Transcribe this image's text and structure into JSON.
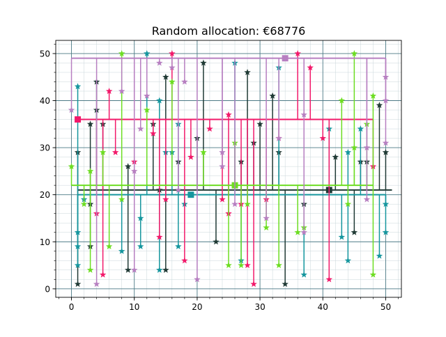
{
  "chart_data": {
    "type": "scatter",
    "title": "Random allocation: €68776",
    "xlabel": "",
    "ylabel": "",
    "xlim": [
      -2.5,
      52.5
    ],
    "ylim": [
      -1.8,
      52.8
    ],
    "xticks": [
      0,
      10,
      20,
      30,
      40,
      50
    ],
    "yticks": [
      0,
      10,
      20,
      30,
      40,
      50
    ],
    "minor_step": 2,
    "grid": "major and minor",
    "legend": "none",
    "series": [
      {
        "color": "#203a35",
        "facility": [
          41,
          21
        ],
        "bus_y": 21,
        "bus_x": [
          1,
          51
        ],
        "points": [
          [
            1,
            1
          ],
          [
            1,
            29
          ],
          [
            3,
            9
          ],
          [
            3,
            18
          ],
          [
            3,
            35
          ],
          [
            4,
            38
          ],
          [
            4,
            44
          ],
          [
            5,
            35
          ],
          [
            9,
            4
          ],
          [
            9,
            26
          ],
          [
            13,
            35
          ],
          [
            14,
            21
          ],
          [
            15,
            4
          ],
          [
            15,
            45
          ],
          [
            17,
            27
          ],
          [
            20,
            32
          ],
          [
            21,
            48
          ],
          [
            23,
            10
          ],
          [
            27,
            27
          ],
          [
            28,
            46
          ],
          [
            29,
            31
          ],
          [
            30,
            35
          ],
          [
            32,
            41
          ],
          [
            33,
            29
          ],
          [
            34,
            1
          ],
          [
            37,
            18
          ],
          [
            42,
            28
          ],
          [
            45,
            12
          ],
          [
            46,
            27
          ],
          [
            47,
            27
          ],
          [
            49,
            39
          ],
          [
            50,
            29
          ]
        ]
      },
      {
        "color": "#15969e",
        "facility": [
          19,
          20
        ],
        "bus_y": 20,
        "bus_x": [
          1,
          50
        ],
        "points": [
          [
            1,
            5
          ],
          [
            1,
            9
          ],
          [
            1,
            12
          ],
          [
            1,
            43
          ],
          [
            2,
            19
          ],
          [
            8,
            8
          ],
          [
            11,
            9
          ],
          [
            11,
            15
          ],
          [
            12,
            50
          ],
          [
            14,
            4
          ],
          [
            14,
            40
          ],
          [
            15,
            29
          ],
          [
            16,
            29
          ],
          [
            17,
            9
          ],
          [
            17,
            35
          ],
          [
            18,
            18
          ],
          [
            26,
            48
          ],
          [
            27,
            6
          ],
          [
            33,
            47
          ],
          [
            37,
            3
          ],
          [
            41,
            34
          ],
          [
            43,
            11
          ],
          [
            44,
            6
          ],
          [
            44,
            29
          ],
          [
            46,
            34
          ],
          [
            49,
            7
          ],
          [
            50,
            12
          ],
          [
            50,
            18
          ]
        ]
      },
      {
        "color": "#f2196a",
        "facility": [
          1,
          36
        ],
        "bus_y": 36,
        "bus_x": [
          1,
          48
        ],
        "points": [
          [
            4,
            16
          ],
          [
            5,
            3
          ],
          [
            6,
            42
          ],
          [
            7,
            29
          ],
          [
            10,
            27
          ],
          [
            13,
            33
          ],
          [
            14,
            11
          ],
          [
            15,
            19
          ],
          [
            16,
            50
          ],
          [
            18,
            6
          ],
          [
            19,
            28
          ],
          [
            22,
            34
          ],
          [
            24,
            19
          ],
          [
            25,
            37
          ],
          [
            25,
            16
          ],
          [
            27,
            18
          ],
          [
            28,
            5
          ],
          [
            29,
            1
          ],
          [
            31,
            19
          ],
          [
            33,
            32
          ],
          [
            36,
            50
          ],
          [
            38,
            47
          ],
          [
            40,
            32
          ],
          [
            41,
            2
          ],
          [
            48,
            26
          ]
        ]
      },
      {
        "color": "#6ddd22",
        "facility": [
          26,
          22
        ],
        "bus_y": 22,
        "bus_x": [
          0,
          48
        ],
        "points": [
          [
            0,
            26
          ],
          [
            2,
            18
          ],
          [
            3,
            4
          ],
          [
            3,
            25
          ],
          [
            5,
            29
          ],
          [
            6,
            9
          ],
          [
            8,
            19
          ],
          [
            8,
            50
          ],
          [
            12,
            38
          ],
          [
            16,
            44
          ],
          [
            21,
            29
          ],
          [
            25,
            5
          ],
          [
            26,
            31
          ],
          [
            27,
            5
          ],
          [
            28,
            18
          ],
          [
            31,
            13
          ],
          [
            33,
            5
          ],
          [
            36,
            12
          ],
          [
            37,
            13
          ],
          [
            43,
            40
          ],
          [
            44,
            18
          ],
          [
            45,
            30
          ],
          [
            45,
            50
          ],
          [
            47,
            35
          ],
          [
            48,
            3
          ],
          [
            48,
            41
          ]
        ]
      },
      {
        "color": "#b77fc1",
        "facility": [
          34,
          49
        ],
        "bus_y": 49,
        "bus_x": [
          0,
          50
        ],
        "points": [
          [
            0,
            38
          ],
          [
            4,
            1
          ],
          [
            8,
            42
          ],
          [
            10,
            4
          ],
          [
            10,
            25
          ],
          [
            11,
            34
          ],
          [
            12,
            41
          ],
          [
            14,
            48
          ],
          [
            16,
            47
          ],
          [
            17,
            21
          ],
          [
            18,
            44
          ],
          [
            20,
            2
          ],
          [
            24,
            26
          ],
          [
            24,
            29
          ],
          [
            26,
            18
          ],
          [
            31,
            15
          ],
          [
            33,
            32
          ],
          [
            37,
            12
          ],
          [
            37,
            37
          ],
          [
            47,
            19
          ],
          [
            47,
            30
          ],
          [
            50,
            31
          ],
          [
            50,
            40
          ],
          [
            50,
            45
          ]
        ]
      }
    ]
  }
}
